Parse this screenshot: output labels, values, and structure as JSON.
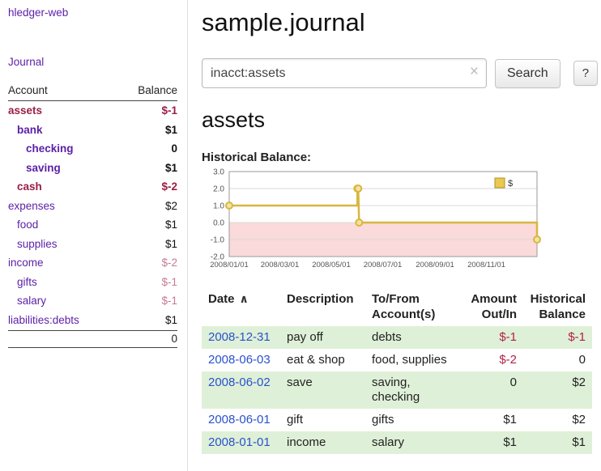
{
  "colors": {
    "purple": "#5b1fa6",
    "date_blue": "#2a52cc",
    "negative": "#992045",
    "negative_soft": "#c77b92",
    "negative_table": "#b42146",
    "row_shade": "#dff0d8",
    "chart_line": "#d9b63e",
    "chart_marker_fill": "#f3e3a2",
    "chart_negative_bg": "#fadada",
    "legend_swatch": "#e9c94f"
  },
  "sidebar": {
    "app_title": "hledger-web",
    "journal_link": "Journal",
    "accounts": {
      "header_account": "Account",
      "header_balance": "Balance",
      "rows": [
        {
          "name": "assets",
          "indent": 0,
          "bold": true,
          "name_style": "negative",
          "balance": "$-1",
          "balance_style": "negative"
        },
        {
          "name": "bank",
          "indent": 1,
          "bold": true,
          "name_style": "purple",
          "balance": "$1",
          "balance_style": "normal"
        },
        {
          "name": "checking",
          "indent": 2,
          "bold": true,
          "name_style": "purple",
          "balance": "0",
          "balance_style": "normal"
        },
        {
          "name": "saving",
          "indent": 2,
          "bold": true,
          "name_style": "purple",
          "balance": "$1",
          "balance_style": "normal"
        },
        {
          "name": "cash",
          "indent": 1,
          "bold": true,
          "name_style": "negative",
          "balance": "$-2",
          "balance_style": "negative"
        },
        {
          "name": "expenses",
          "indent": 0,
          "bold": false,
          "name_style": "purple",
          "balance": "$2",
          "balance_style": "normal"
        },
        {
          "name": "food",
          "indent": 1,
          "bold": false,
          "name_style": "purple",
          "balance": "$1",
          "balance_style": "normal"
        },
        {
          "name": "supplies",
          "indent": 1,
          "bold": false,
          "name_style": "purple",
          "balance": "$1",
          "balance_style": "normal"
        },
        {
          "name": "income",
          "indent": 0,
          "bold": false,
          "name_style": "purple",
          "balance": "$-2",
          "balance_style": "negative-soft"
        },
        {
          "name": "gifts",
          "indent": 1,
          "bold": false,
          "name_style": "purple",
          "balance": "$-1",
          "balance_style": "negative-soft"
        },
        {
          "name": "salary",
          "indent": 1,
          "bold": false,
          "name_style": "purple",
          "balance": "$-1",
          "balance_style": "negative-soft"
        },
        {
          "name": "liabilities:debts",
          "indent": 0,
          "bold": false,
          "name_style": "purple",
          "balance": "$1",
          "balance_style": "normal"
        }
      ],
      "total": "0"
    }
  },
  "main": {
    "title": "sample.journal",
    "search": {
      "value": "inacct:assets",
      "clear_icon": "×",
      "button_label": "Search",
      "help_label": "?"
    },
    "account_heading": "assets",
    "chart_label": "Historical Balance:"
  },
  "chart_data": {
    "type": "line",
    "title": "Historical Balance",
    "legend": [
      {
        "label": "$",
        "swatch_color": "#e9c94f"
      }
    ],
    "ylim": [
      -2,
      3
    ],
    "y_ticks": [
      {
        "label": "3.0",
        "value": 3
      },
      {
        "label": "2.0",
        "value": 2
      },
      {
        "label": "1.0",
        "value": 1
      },
      {
        "label": "0.0",
        "value": 0
      },
      {
        "label": "-1.0",
        "value": -1
      },
      {
        "label": "-2.0",
        "value": -2
      }
    ],
    "xlim_days": [
      0,
      365
    ],
    "x_ticks": [
      {
        "label": "2008/01/01",
        "day": 0
      },
      {
        "label": "2008/03/01",
        "day": 60
      },
      {
        "label": "2008/05/01",
        "day": 121
      },
      {
        "label": "2008/07/01",
        "day": 182
      },
      {
        "label": "2008/09/01",
        "day": 244
      },
      {
        "label": "2008/11/01",
        "day": 305
      }
    ],
    "grid": true,
    "negative_region_shaded": true,
    "series": [
      {
        "name": "$",
        "points": [
          {
            "date": "2008-01-01",
            "day": 0,
            "value": 1,
            "marker": true
          },
          {
            "date": "2008-06-01",
            "day": 152,
            "value": 1,
            "marker": false
          },
          {
            "date": "2008-06-01",
            "day": 152,
            "value": 2,
            "marker": true
          },
          {
            "date": "2008-06-02",
            "day": 153,
            "value": 2,
            "marker": true
          },
          {
            "date": "2008-06-03",
            "day": 154,
            "value": 0,
            "marker": true
          },
          {
            "date": "2008-12-31",
            "day": 365,
            "value": 0,
            "marker": false
          },
          {
            "date": "2008-12-31",
            "day": 365,
            "value": -1,
            "marker": true
          }
        ]
      }
    ]
  },
  "register": {
    "headers": [
      {
        "label": "Date",
        "align": "left",
        "sort_icon": "∧"
      },
      {
        "label": "Description",
        "align": "left"
      },
      {
        "label": "To/From Account(s)",
        "align": "left"
      },
      {
        "label": "Amount Out/In",
        "align": "right"
      },
      {
        "label": "Historical Balance",
        "align": "right"
      }
    ],
    "rows": [
      {
        "date": "2008-12-31",
        "description": "pay off",
        "accounts": "debts",
        "amount": "$-1",
        "amount_negative": true,
        "balance": "$-1",
        "balance_negative": true
      },
      {
        "date": "2008-06-03",
        "description": "eat & shop",
        "accounts": "food, supplies",
        "amount": "$-2",
        "amount_negative": true,
        "balance": "0",
        "balance_negative": false
      },
      {
        "date": "2008-06-02",
        "description": "save",
        "accounts": "saving,\nchecking",
        "amount": "0",
        "amount_negative": false,
        "balance": "$2",
        "balance_negative": false
      },
      {
        "date": "2008-06-01",
        "description": "gift",
        "accounts": "gifts",
        "amount": "$1",
        "amount_negative": false,
        "balance": "$2",
        "balance_negative": false
      },
      {
        "date": "2008-01-01",
        "description": "income",
        "accounts": "salary",
        "amount": "$1",
        "amount_negative": false,
        "balance": "$1",
        "balance_negative": false
      }
    ]
  }
}
